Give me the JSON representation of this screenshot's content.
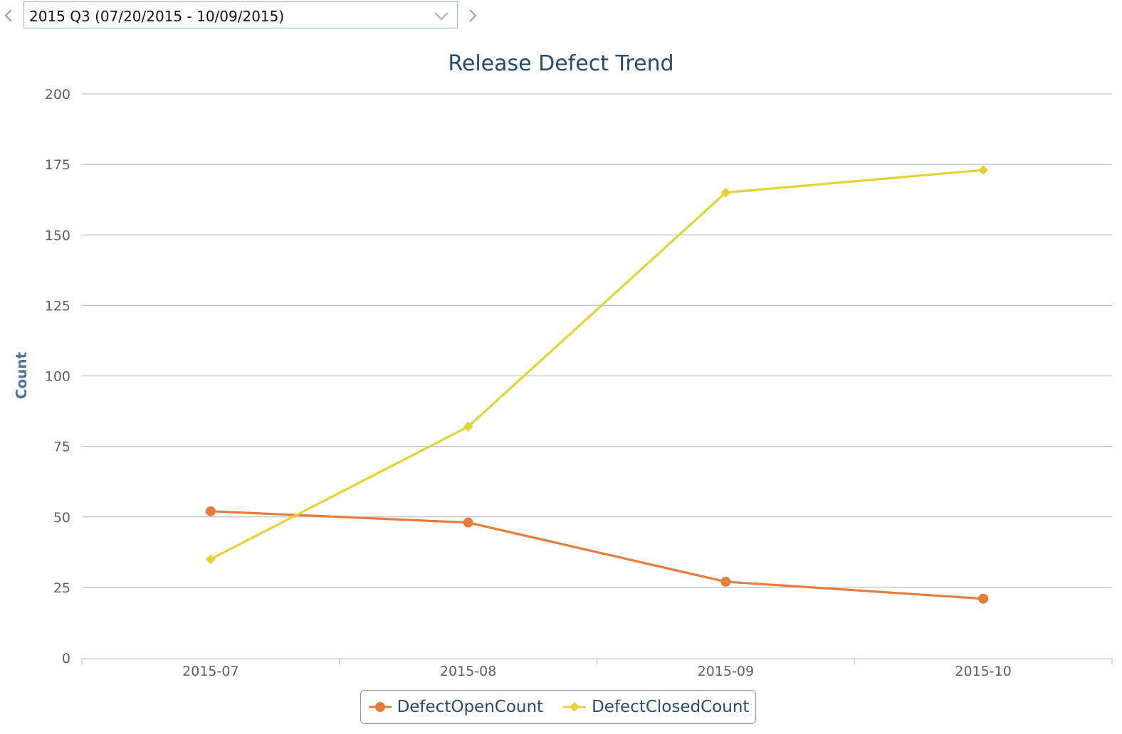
{
  "period_selector": {
    "selected": "2015 Q3 (07/20/2015 - 10/09/2015)",
    "prev_icon": "chevron-left-icon",
    "next_icon": "chevron-right-icon",
    "dropdown_icon": "chevron-down-icon"
  },
  "chart_data": {
    "type": "line",
    "title": "Release Defect Trend",
    "xlabel": "",
    "ylabel": "Count",
    "categories": [
      "2015-07",
      "2015-08",
      "2015-09",
      "2015-10"
    ],
    "ylim": [
      0,
      200
    ],
    "yticks": [
      0,
      25,
      50,
      75,
      100,
      125,
      150,
      175,
      200
    ],
    "grid": true,
    "legend_position": "bottom-center",
    "series": [
      {
        "name": "DefectOpenCount",
        "values": [
          52,
          48,
          27,
          21
        ],
        "color": "#e87c3b",
        "marker": "circle"
      },
      {
        "name": "DefectClosedCount",
        "values": [
          35,
          82,
          165,
          173
        ],
        "color": "#e5d234",
        "marker": "diamond"
      }
    ]
  }
}
